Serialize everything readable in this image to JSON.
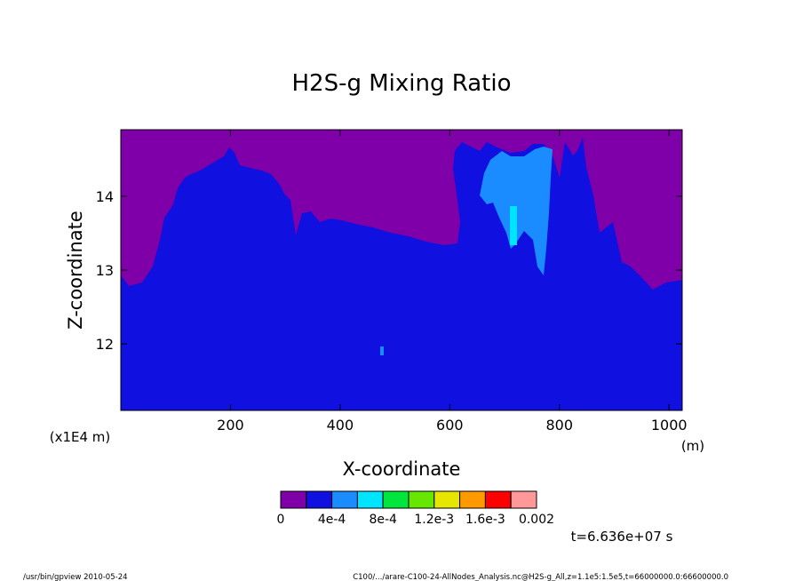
{
  "chart_data": {
    "type": "heatmap",
    "title": "H2S-g Mixing Ratio",
    "xlabel": "X-coordinate",
    "ylabel": "Z-coordinate",
    "x_unit": "(m)",
    "y_unit": "(x1E4 m)",
    "xlim": [
      0,
      1024
    ],
    "ylim": [
      11.1,
      14.9
    ],
    "x_ticks": [
      200,
      400,
      600,
      800,
      1000
    ],
    "y_ticks": [
      12,
      13,
      14
    ],
    "grid": false,
    "colorbar": {
      "levels": [
        0,
        0.0002,
        0.0004,
        0.0006,
        0.0008,
        0.001,
        0.0012,
        0.0014,
        0.0016,
        0.0018,
        0.002
      ],
      "labels": [
        "0",
        "4e-4",
        "8e-4",
        "1.2e-3",
        "1.6e-3",
        "0.002"
      ],
      "colors": [
        "#7f00a8",
        "#1010e0",
        "#1a8cff",
        "#00e5ff",
        "#00e63c",
        "#66e600",
        "#e6e600",
        "#ff9900",
        "#ff0000",
        "#ff9999"
      ]
    },
    "regions": [
      {
        "name": "background",
        "level_bin": 0
      },
      {
        "name": "lower domain",
        "level_bin": 1,
        "x_range": [
          0,
          1024
        ],
        "z_top_approx": [
          12.9,
          14.7
        ]
      },
      {
        "name": "plume core",
        "level_bin": 2,
        "x_range": [
          650,
          790
        ],
        "z_range": [
          12.9,
          14.8
        ]
      },
      {
        "name": "plume max",
        "level_bin": 3,
        "x_range": [
          710,
          725
        ],
        "z_range": [
          13.1,
          13.9
        ]
      }
    ],
    "time_label": "t=6.636e+07 s"
  },
  "footer": {
    "left": "/usr/bin/gpview  2010-05-24",
    "right": "C100/.../arare-C100-24-AllNodes_Analysis.nc@H2S-g_All,z=1.1e5:1.5e5,t=66000000.0:66600000.0"
  }
}
